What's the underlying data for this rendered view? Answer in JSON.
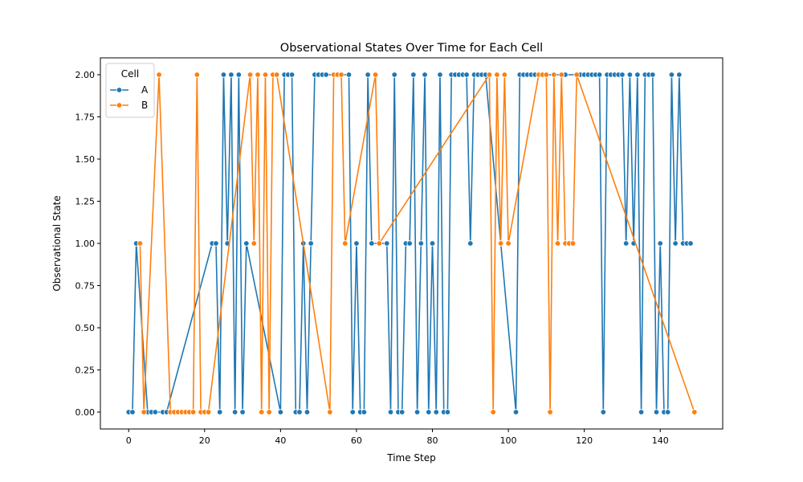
{
  "chart_data": {
    "type": "line",
    "title": "Observational States Over Time for Each Cell",
    "xlabel": "Time Step",
    "ylabel": "Observational State",
    "xlim": [
      -7.45,
      156.45
    ],
    "ylim": [
      -0.1,
      2.1
    ],
    "xticks": [
      0,
      20,
      40,
      60,
      80,
      100,
      120,
      140
    ],
    "yticks": [
      0.0,
      0.25,
      0.5,
      0.75,
      1.0,
      1.25,
      1.5,
      1.75,
      2.0
    ],
    "ytick_labels": [
      "0.00",
      "0.25",
      "0.50",
      "0.75",
      "1.00",
      "1.25",
      "1.50",
      "1.75",
      "2.00"
    ],
    "grid": false,
    "legend": {
      "title": "Cell",
      "placement": "top-left"
    },
    "series": [
      {
        "name": "A",
        "color": "#1f77b4",
        "x": [
          0,
          1,
          2,
          5,
          6,
          7,
          9,
          10,
          22,
          23,
          24,
          25,
          26,
          27,
          28,
          29,
          30,
          31,
          40,
          41,
          42,
          43,
          44,
          45,
          46,
          47,
          48,
          49,
          50,
          51,
          52,
          58,
          59,
          60,
          61,
          62,
          63,
          64,
          68,
          69,
          70,
          71,
          72,
          73,
          74,
          75,
          76,
          77,
          78,
          79,
          80,
          81,
          82,
          83,
          84,
          85,
          86,
          87,
          88,
          89,
          90,
          91,
          92,
          93,
          94,
          102,
          103,
          104,
          105,
          106,
          107,
          108,
          109,
          115,
          118,
          119,
          120,
          121,
          122,
          123,
          124,
          125,
          126,
          127,
          128,
          129,
          130,
          131,
          132,
          133,
          134,
          135,
          136,
          137,
          138,
          139,
          140,
          141,
          142,
          143,
          144,
          145,
          146,
          147,
          148
        ],
        "y": [
          0,
          0,
          1,
          0,
          0,
          0,
          0,
          0,
          1,
          1,
          0,
          2,
          1,
          2,
          0,
          2,
          0,
          1,
          0,
          2,
          2,
          2,
          0,
          0,
          1,
          0,
          1,
          2,
          2,
          2,
          2,
          2,
          0,
          1,
          0,
          0,
          2,
          1,
          1,
          0,
          2,
          0,
          0,
          1,
          1,
          2,
          0,
          1,
          2,
          0,
          1,
          0,
          2,
          0,
          0,
          2,
          2,
          2,
          2,
          2,
          1,
          2,
          2,
          2,
          2,
          0,
          2,
          2,
          2,
          2,
          2,
          2,
          2,
          2,
          2,
          2,
          2,
          2,
          2,
          2,
          2,
          0,
          2,
          2,
          2,
          2,
          2,
          1,
          2,
          1,
          2,
          0,
          2,
          2,
          2,
          0,
          1,
          0,
          0,
          2,
          1,
          2,
          1,
          1,
          1
        ]
      },
      {
        "name": "B",
        "color": "#ff7f0e",
        "x": [
          3,
          4,
          8,
          11,
          12,
          13,
          14,
          15,
          16,
          17,
          18,
          19,
          20,
          21,
          32,
          33,
          34,
          35,
          36,
          37,
          38,
          39,
          53,
          54,
          55,
          56,
          57,
          65,
          66,
          95,
          96,
          97,
          98,
          99,
          100,
          108,
          109,
          110,
          111,
          112,
          113,
          114,
          115,
          116,
          117,
          118,
          149
        ],
        "y": [
          1,
          0,
          2,
          0,
          0,
          0,
          0,
          0,
          0,
          0,
          2,
          0,
          0,
          0,
          2,
          1,
          2,
          0,
          2,
          0,
          2,
          2,
          0,
          2,
          2,
          2,
          1,
          2,
          1,
          2,
          0,
          2,
          1,
          2,
          1,
          2,
          2,
          2,
          0,
          2,
          1,
          2,
          1,
          1,
          1,
          2,
          0
        ]
      }
    ]
  }
}
